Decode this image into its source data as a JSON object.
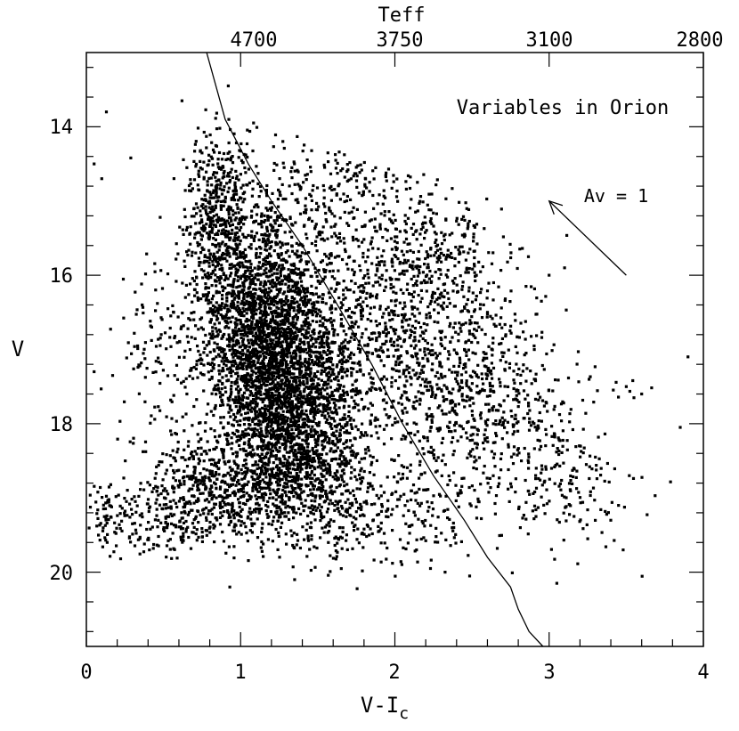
{
  "chart_data": {
    "type": "scatter",
    "title": "Variables in Orion",
    "xlabel": "V-I",
    "xlabel_sub": "c",
    "ylabel": "V",
    "top_axis_label": "Teff",
    "xlim": [
      0,
      4
    ],
    "ylim": [
      21,
      13
    ],
    "y_inverted": true,
    "x_ticks": [
      "0",
      "1",
      "2",
      "3",
      "4"
    ],
    "y_ticks": [
      "14",
      "16",
      "18",
      "20"
    ],
    "top_ticks": [
      {
        "x": 1.0,
        "label": "4700"
      },
      {
        "x": 2.0,
        "label": "3750"
      },
      {
        "x": 3.0,
        "label": "3100"
      },
      {
        "x": 4.0,
        "label": "2800"
      }
    ],
    "reddening_arrow": {
      "label": "Av = 1",
      "from": [
        3.5,
        16.0
      ],
      "to": [
        3.0,
        15.0
      ]
    },
    "isochrone": {
      "x": [
        0.78,
        0.9,
        1.05,
        1.2,
        1.4,
        1.6,
        1.85,
        2.05,
        2.25,
        2.45,
        2.6,
        2.75,
        2.8,
        2.87,
        2.96
      ],
      "y": [
        13.0,
        13.9,
        14.5,
        15.0,
        15.6,
        16.3,
        17.2,
        18.0,
        18.7,
        19.3,
        19.8,
        20.2,
        20.5,
        20.8,
        21.0
      ]
    },
    "point_clusters": [
      {
        "cx": 1.15,
        "cy": 16.8,
        "sx": 0.22,
        "sy": 0.85,
        "n": 2600
      },
      {
        "cx": 1.4,
        "cy": 18.0,
        "sx": 0.2,
        "sy": 0.65,
        "n": 1400
      },
      {
        "cx": 0.85,
        "cy": 15.2,
        "sx": 0.1,
        "sy": 0.6,
        "n": 450
      },
      {
        "cx": 1.0,
        "cy": 18.8,
        "sx": 0.3,
        "sy": 0.35,
        "n": 650
      },
      {
        "cx": 0.55,
        "cy": 19.3,
        "sx": 0.25,
        "sy": 0.25,
        "n": 220
      },
      {
        "cx": 0.12,
        "cy": 19.2,
        "sx": 0.08,
        "sy": 0.2,
        "n": 40
      },
      {
        "cx": 1.95,
        "cy": 16.6,
        "sx": 0.35,
        "sy": 0.9,
        "n": 850
      },
      {
        "cx": 2.45,
        "cy": 17.4,
        "sx": 0.3,
        "sy": 0.7,
        "n": 550
      },
      {
        "cx": 2.85,
        "cy": 18.4,
        "sx": 0.3,
        "sy": 0.55,
        "n": 220
      },
      {
        "cx": 1.85,
        "cy": 19.2,
        "sx": 0.3,
        "sy": 0.35,
        "n": 300
      },
      {
        "cx": 1.6,
        "cy": 14.8,
        "sx": 0.35,
        "sy": 0.35,
        "n": 220
      },
      {
        "cx": 2.2,
        "cy": 15.6,
        "sx": 0.25,
        "sy": 0.3,
        "n": 150
      },
      {
        "cx": 0.45,
        "cy": 16.8,
        "sx": 0.12,
        "sy": 0.8,
        "n": 90
      },
      {
        "cx": 3.1,
        "cy": 18.9,
        "sx": 0.25,
        "sy": 0.45,
        "n": 80
      }
    ],
    "outliers": [
      {
        "x": 0.05,
        "y": 14.5
      },
      {
        "x": 0.1,
        "y": 14.7
      },
      {
        "x": 0.13,
        "y": 13.8
      },
      {
        "x": 0.05,
        "y": 17.3
      },
      {
        "x": 0.17,
        "y": 17.35
      },
      {
        "x": 0.62,
        "y": 13.65
      },
      {
        "x": 0.92,
        "y": 13.45
      },
      {
        "x": 0.93,
        "y": 20.2
      },
      {
        "x": 1.35,
        "y": 20.1
      },
      {
        "x": 3.05,
        "y": 20.15
      },
      {
        "x": 3.0,
        "y": 16.0
      },
      {
        "x": 3.1,
        "y": 15.9
      },
      {
        "x": 3.5,
        "y": 17.5
      },
      {
        "x": 3.55,
        "y": 17.65
      },
      {
        "x": 3.6,
        "y": 17.6
      },
      {
        "x": 3.9,
        "y": 17.1
      },
      {
        "x": 3.85,
        "y": 18.05
      },
      {
        "x": 3.52,
        "y": 18.7
      },
      {
        "x": 3.48,
        "y": 19.7
      },
      {
        "x": 3.4,
        "y": 19.3
      },
      {
        "x": 3.25,
        "y": 19.55
      },
      {
        "x": 3.45,
        "y": 19.1
      },
      {
        "x": 2.6,
        "y": 16.5
      },
      {
        "x": 2.85,
        "y": 16.15
      },
      {
        "x": 2.95,
        "y": 16.35
      }
    ]
  }
}
